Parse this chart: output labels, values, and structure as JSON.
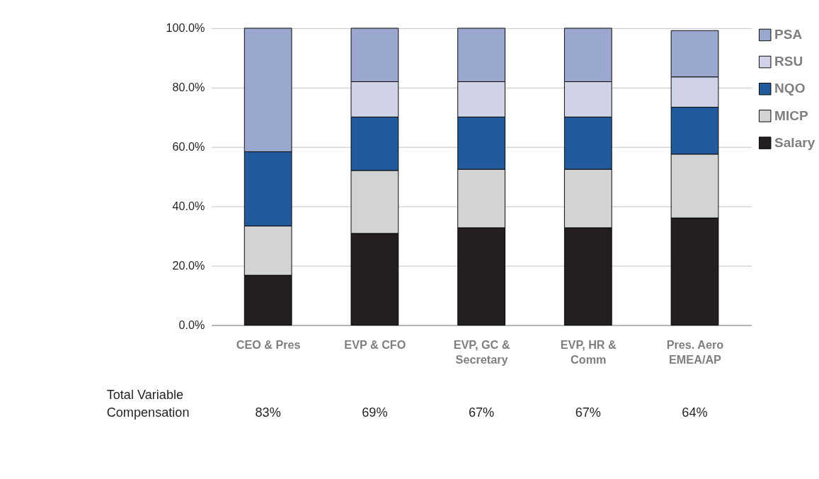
{
  "chart_data": {
    "type": "bar",
    "stacked": true,
    "categories": [
      "CEO & Pres",
      "EVP & CFO",
      "EVP, GC &\nSecretary",
      "EVP, HR &\nComm",
      "Pres. Aero\nEMEA/AP"
    ],
    "series": [
      {
        "name": "Salary",
        "color": "#231f20",
        "values": [
          16.8,
          30.9,
          32.8,
          32.8,
          36.1
        ]
      },
      {
        "name": "MICP",
        "color": "#d1d3d4",
        "values": [
          16.6,
          21.2,
          19.7,
          19.7,
          21.5
        ]
      },
      {
        "name": "NQO",
        "color": "#235a9c",
        "values": [
          25.0,
          18.0,
          17.6,
          17.6,
          15.8
        ]
      },
      {
        "name": "RSU",
        "color": "#d0d3e8",
        "values": [
          0,
          11.9,
          11.9,
          11.9,
          10.2
        ]
      },
      {
        "name": "PSA",
        "color": "#9aa7cf",
        "values": [
          41.6,
          18.0,
          18.0,
          18.0,
          15.6
        ]
      }
    ],
    "ylim": [
      0,
      100
    ],
    "yticks": [
      {
        "value": 0,
        "label": "0.0%"
      },
      {
        "value": 20,
        "label": "20.0%"
      },
      {
        "value": 40,
        "label": "40.0%"
      },
      {
        "value": 60,
        "label": "60.0%"
      },
      {
        "value": 80,
        "label": "80.0%"
      },
      {
        "value": 100,
        "label": "100.0%"
      }
    ],
    "grid": "y",
    "legend": "right",
    "annotations": [
      "Total Variable\nCompensation",
      "83%",
      "69%",
      "67%",
      "67%",
      "64%"
    ]
  }
}
